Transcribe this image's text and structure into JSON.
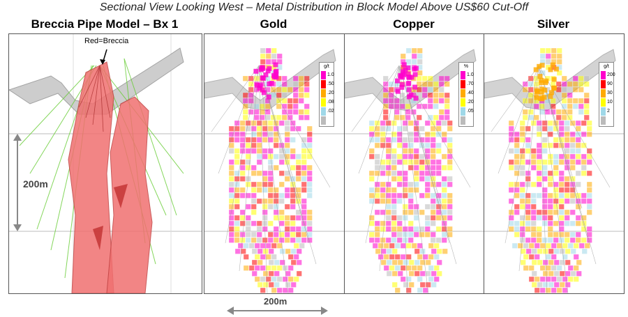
{
  "title": "Sectional View Looking West – Metal Distribution in Block Model Above US$60 Cut-Off",
  "panels": {
    "breccia": {
      "title": "Breccia Pipe Model – Bx 1",
      "annotation": "Red=Breccia",
      "scale_label": "200m"
    },
    "gold": {
      "title": "Gold",
      "legend": {
        "unit": "g/t",
        "items": [
          {
            "label": "1.0",
            "color": "#ff00cc"
          },
          {
            "label": ".50",
            "color": "#ff0000"
          },
          {
            "label": ".20",
            "color": "#ffaa00"
          },
          {
            "label": ".08",
            "color": "#ffff00"
          },
          {
            "label": ".02",
            "color": "#9fd8e8"
          },
          {
            "label": "",
            "color": "#bbbbbb"
          }
        ]
      }
    },
    "copper": {
      "title": "Copper",
      "legend": {
        "unit": "%",
        "items": [
          {
            "label": "1.0",
            "color": "#ff00cc"
          },
          {
            "label": ".70",
            "color": "#ff0000"
          },
          {
            "label": ".40",
            "color": "#ffaa00"
          },
          {
            "label": ".20",
            "color": "#ffff00"
          },
          {
            "label": ".05",
            "color": "#9fd8e8"
          },
          {
            "label": "",
            "color": "#bbbbbb"
          }
        ]
      }
    },
    "silver": {
      "title": "Silver",
      "legend": {
        "unit": "g/t",
        "items": [
          {
            "label": "200",
            "color": "#ff00cc"
          },
          {
            "label": "90",
            "color": "#ff0000"
          },
          {
            "label": "30",
            "color": "#ffaa00"
          },
          {
            "label": "10",
            "color": "#ffff00"
          },
          {
            "label": "2",
            "color": "#9fd8e8"
          },
          {
            "label": "",
            "color": "#bbbbbb"
          }
        ]
      }
    }
  },
  "bottom_scale_label": "200m"
}
